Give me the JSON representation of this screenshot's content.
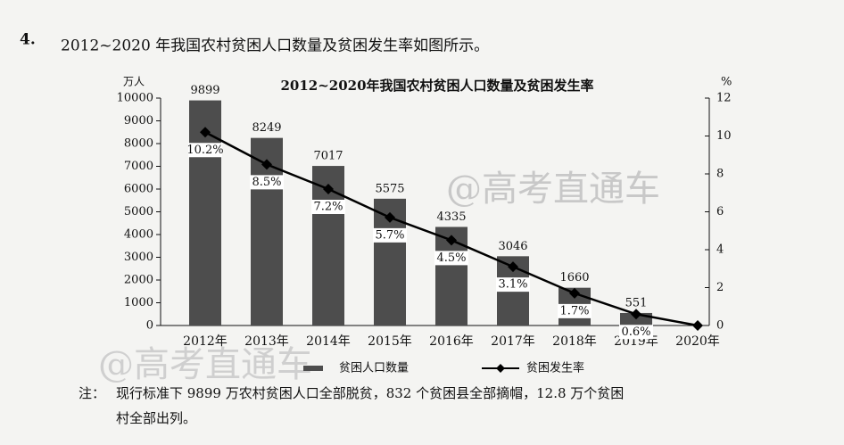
{
  "question": {
    "number": "4.",
    "text": "2012~2020 年我国农村贫困人口数量及贫困发生率如图所示。"
  },
  "chart_data": {
    "type": "bar-line",
    "title": "2012~2020年我国农村贫困人口数量及贫困发生率",
    "ylabel": "万人",
    "y2label": "%",
    "categories": [
      "2012年",
      "2013年",
      "2014年",
      "2015年",
      "2016年",
      "2017年",
      "2018年",
      "2019年",
      "2020年"
    ],
    "series": [
      {
        "name": "贫困人口数量",
        "type": "bar",
        "color": "#4d4d4d",
        "values": [
          9899,
          8249,
          7017,
          5575,
          4335,
          3046,
          1660,
          551,
          null
        ]
      },
      {
        "name": "贫困发生率",
        "type": "line",
        "axis": "y2",
        "color": "#000000",
        "values": [
          10.2,
          8.5,
          7.2,
          5.7,
          4.5,
          3.1,
          1.7,
          0.6,
          0
        ],
        "value_labels": [
          "10.2%",
          "8.5%",
          "7.2%",
          "5.7%",
          "4.5%",
          "3.1%",
          "1.7%",
          "0.6%",
          null
        ]
      }
    ],
    "ylim": [
      0,
      10000
    ],
    "yticks": [
      0,
      1000,
      2000,
      3000,
      4000,
      5000,
      6000,
      7000,
      8000,
      9000,
      10000
    ],
    "y2lim": [
      0,
      12
    ],
    "y2ticks": [
      0,
      2,
      4,
      6,
      8,
      10,
      12
    ],
    "legend": "bottom"
  },
  "note": {
    "label": "注：",
    "lines": [
      "现行标准下 9899 万农村贫困人口全部脱贫，832 个贫困县全部摘帽，12.8 万个贫困",
      "村全部出列。"
    ]
  },
  "watermark": "@高考直通车"
}
